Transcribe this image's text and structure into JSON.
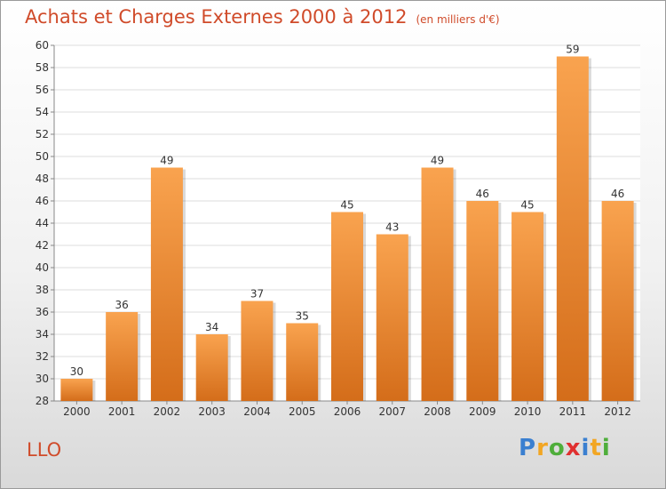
{
  "chart_data": {
    "type": "bar",
    "title": "Achats et Charges Externes 2000 à 2012",
    "subtitle": "(en milliers d'€)",
    "categories": [
      "2000",
      "2001",
      "2002",
      "2003",
      "2004",
      "2005",
      "2006",
      "2007",
      "2008",
      "2009",
      "2010",
      "2011",
      "2012"
    ],
    "values": [
      30,
      36,
      49,
      34,
      37,
      35,
      45,
      43,
      49,
      46,
      45,
      59,
      46
    ],
    "ylim": [
      28,
      60
    ],
    "yticks": [
      28,
      30,
      32,
      34,
      36,
      38,
      40,
      42,
      44,
      46,
      48,
      50,
      52,
      54,
      56,
      58,
      60
    ],
    "grid": true,
    "legend": "none",
    "bar_color_light": "#f9a34f",
    "bar_color_dark": "#d46d1a"
  },
  "commune": "LLO",
  "logo": {
    "letters": [
      "P",
      "r",
      "o",
      "x",
      "i",
      "t",
      "i"
    ],
    "colors": [
      "#3a7fd0",
      "#f2a623",
      "#4fae3b",
      "#e03030",
      "#3a7fd0",
      "#f2a623",
      "#4fae3b"
    ]
  }
}
